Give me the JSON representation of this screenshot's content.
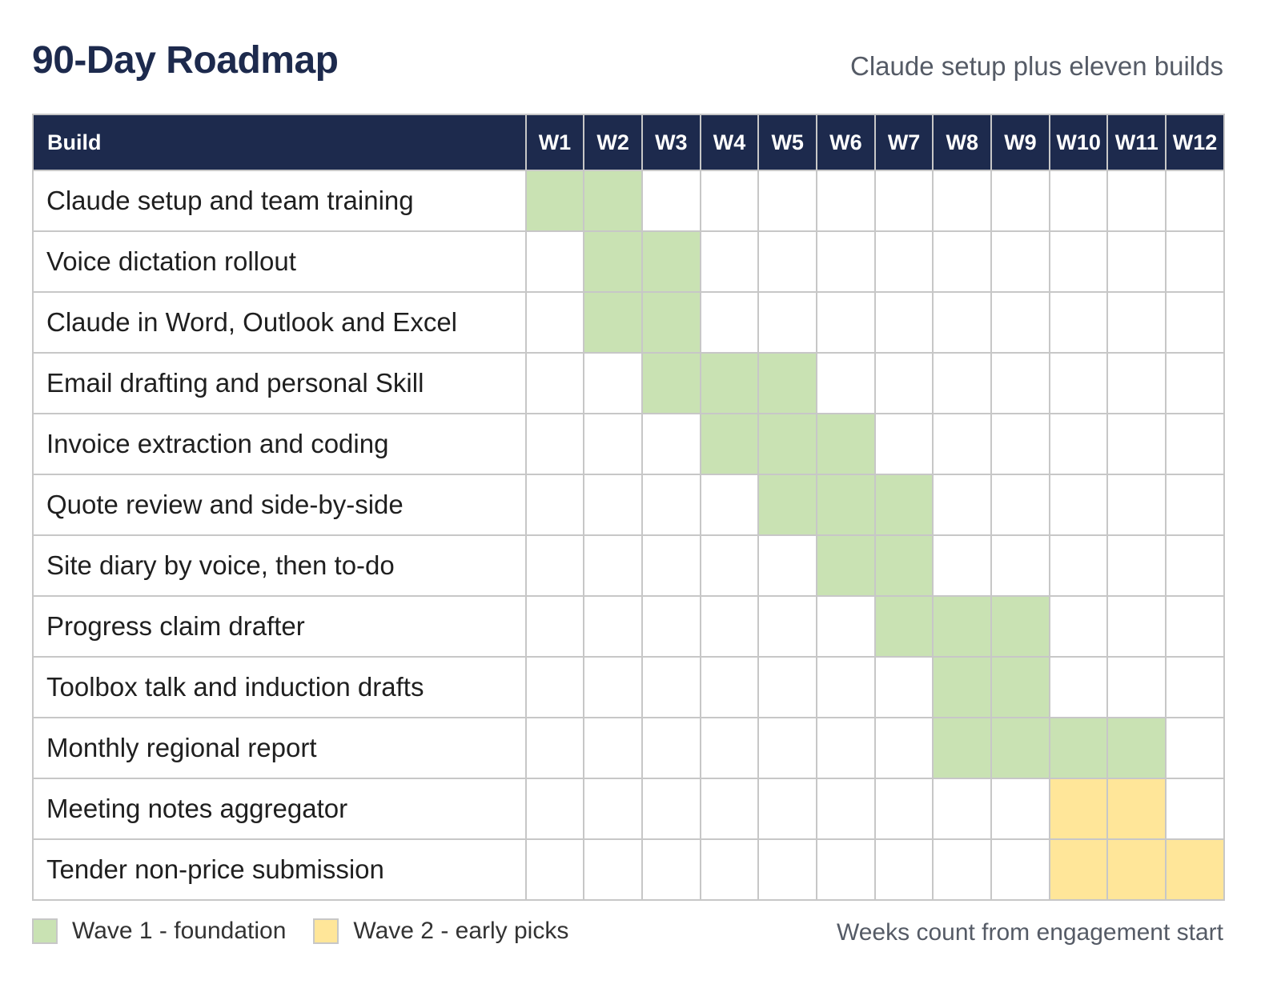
{
  "header": {
    "title": "90-Day Roadmap",
    "subtitle": "Claude setup plus eleven builds"
  },
  "chart_data": {
    "type": "table",
    "build_column_label": "Build",
    "weeks": [
      "W1",
      "W2",
      "W3",
      "W4",
      "W5",
      "W6",
      "W7",
      "W8",
      "W9",
      "W10",
      "W11",
      "W12"
    ],
    "tasks": [
      {
        "name": "Claude setup and team training",
        "start_week": 1,
        "end_week": 2,
        "wave": "wave1"
      },
      {
        "name": "Voice dictation rollout",
        "start_week": 2,
        "end_week": 3,
        "wave": "wave1"
      },
      {
        "name": "Claude in Word, Outlook and Excel",
        "start_week": 2,
        "end_week": 3,
        "wave": "wave1"
      },
      {
        "name": "Email drafting and personal Skill",
        "start_week": 3,
        "end_week": 5,
        "wave": "wave1"
      },
      {
        "name": "Invoice extraction and coding",
        "start_week": 4,
        "end_week": 6,
        "wave": "wave1"
      },
      {
        "name": "Quote review and side-by-side",
        "start_week": 5,
        "end_week": 7,
        "wave": "wave1"
      },
      {
        "name": "Site diary by voice, then to-do",
        "start_week": 6,
        "end_week": 7,
        "wave": "wave1"
      },
      {
        "name": "Progress claim drafter",
        "start_week": 7,
        "end_week": 9,
        "wave": "wave1"
      },
      {
        "name": "Toolbox talk and induction drafts",
        "start_week": 8,
        "end_week": 9,
        "wave": "wave1"
      },
      {
        "name": "Monthly regional report",
        "start_week": 8,
        "end_week": 11,
        "wave": "wave1"
      },
      {
        "name": "Meeting notes aggregator",
        "start_week": 10,
        "end_week": 11,
        "wave": "wave2"
      },
      {
        "name": "Tender non-price submission",
        "start_week": 10,
        "end_week": 12,
        "wave": "wave2"
      }
    ],
    "legend": [
      {
        "key": "wave1",
        "label": "Wave 1 - foundation",
        "color": "#c9e2b3"
      },
      {
        "key": "wave2",
        "label": "Wave 2 - early picks",
        "color": "#ffe699"
      }
    ],
    "header_color": "#1d2a4d"
  },
  "footer": {
    "note": "Weeks count from engagement start"
  }
}
